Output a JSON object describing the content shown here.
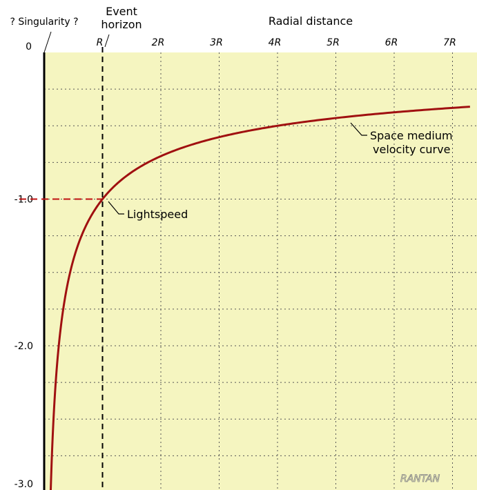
{
  "chart_data": {
    "type": "line",
    "title": "",
    "xlabel": "Radial distance",
    "ylabel": "",
    "x_ticks": [
      "R",
      "2R",
      "3R",
      "4R",
      "5R",
      "6R",
      "7R"
    ],
    "x_tick_values": [
      1,
      2,
      3,
      4,
      5,
      6,
      7
    ],
    "y_ticks": [
      "0",
      "-1.0",
      "-2.0",
      "-3.0"
    ],
    "y_tick_values": [
      0,
      -1,
      -2,
      -3
    ],
    "xlim": [
      0,
      7.3
    ],
    "ylim": [
      -3.0,
      0
    ],
    "grid": true,
    "background": "#F5F5C0",
    "curve_color": "#A01010",
    "series": [
      {
        "name": "Space medium velocity curve",
        "x": [
          0.11,
          0.15,
          0.2,
          0.3,
          0.5,
          0.75,
          1.0,
          1.5,
          2.0,
          3.0,
          4.0,
          5.0,
          6.0,
          7.0,
          7.3
        ],
        "y": [
          -3.0,
          -2.58,
          -2.24,
          -1.83,
          -1.41,
          -1.15,
          -1.0,
          -0.82,
          -0.71,
          -0.58,
          -0.5,
          -0.45,
          -0.41,
          -0.38,
          -0.37
        ]
      }
    ],
    "annotations": {
      "singularity": "? Singularity ?",
      "event_horizon_line1": "Event",
      "event_horizon_line2": "horizon",
      "lightspeed": "Lightspeed",
      "curve_label_line1": "Space medium",
      "curve_label_line2": "velocity curve"
    },
    "watermark": "RANTAN"
  }
}
